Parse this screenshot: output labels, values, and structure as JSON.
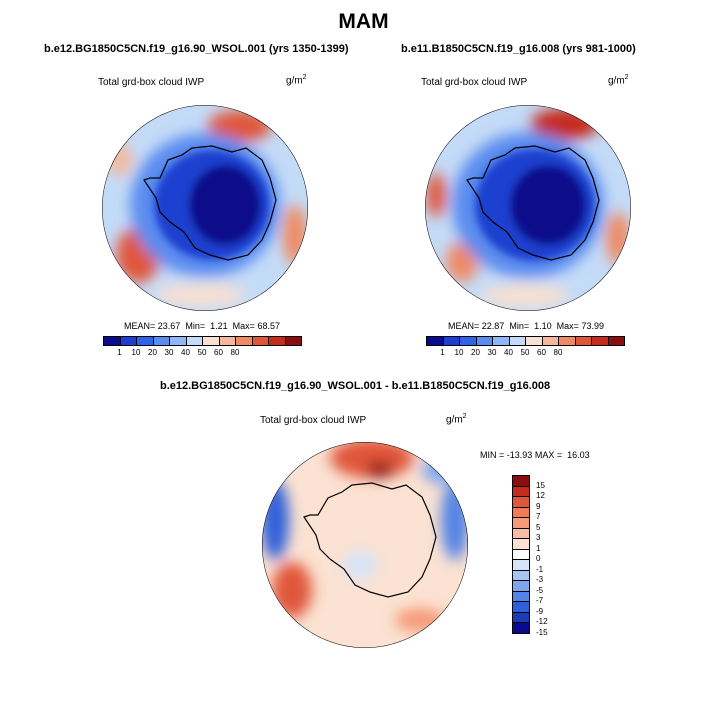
{
  "figure": {
    "title": "MAM"
  },
  "panels": [
    {
      "case_title": "b.e12.BG1850C5CN.f19_g16.90_WSOL.001 (yrs 1350-1399)",
      "variable": "Total grd-box cloud IWP",
      "units_base": "g/m",
      "units_exp": "2",
      "mean_label": "MEAN=",
      "mean": "23.67",
      "min_label": "Min=",
      "min": "1.21",
      "max_label": "Max=",
      "max": "68.57",
      "colorbar": {
        "colors": [
          "#0a0a8c",
          "#1c3fcf",
          "#2f63e6",
          "#5a8cf0",
          "#8fb6f5",
          "#c4dbf7",
          "#f7e0d3",
          "#f5b89c",
          "#ef8a64",
          "#e0563a",
          "#c42b1d",
          "#8c0d0d"
        ],
        "ticks": [
          "1",
          "10",
          "20",
          "30",
          "40",
          "50",
          "60",
          "80"
        ]
      }
    },
    {
      "case_title": "b.e11.B1850C5CN.f19_g16.008 (yrs 981-1000)",
      "variable": "Total grd-box cloud IWP",
      "units_base": "g/m",
      "units_exp": "2",
      "mean_label": "MEAN=",
      "mean": "22.87",
      "min_label": "Min=",
      "min": "1.10",
      "max_label": "Max=",
      "max": "73.99",
      "colorbar": {
        "colors": [
          "#0a0a8c",
          "#1c3fcf",
          "#2f63e6",
          "#5a8cf0",
          "#8fb6f5",
          "#c4dbf7",
          "#f7e0d3",
          "#f5b89c",
          "#ef8a64",
          "#e0563a",
          "#c42b1d",
          "#8c0d0d"
        ],
        "ticks": [
          "1",
          "10",
          "20",
          "30",
          "40",
          "50",
          "60",
          "80"
        ]
      }
    },
    {
      "case_title": "b.e12.BG1850C5CN.f19_g16.90_WSOL.001 - b.e11.B1850C5CN.f19_g16.008",
      "variable": "Total grd-box cloud IWP",
      "units_base": "g/m",
      "units_exp": "2",
      "min_label": "MIN =",
      "min": "-13.93",
      "max_label": "MAX =",
      "max": "16.03",
      "colorbar": {
        "colors": [
          "#8c0d0d",
          "#c42b1d",
          "#e0563a",
          "#ef7a55",
          "#f59a78",
          "#f8bea3",
          "#fbe2d2",
          "#ffffff",
          "#d6e4f8",
          "#a9c6f3",
          "#7ea6ee",
          "#5283e6",
          "#2f5fd9",
          "#1c3bb8",
          "#0a0a8c"
        ],
        "ticks": [
          "15",
          "12",
          "9",
          "7",
          "5",
          "3",
          "1",
          "0",
          "-1",
          "-3",
          "-5",
          "-7",
          "-9",
          "-12",
          "-15"
        ]
      }
    }
  ],
  "map_colors": {
    "high": "#c42b1d",
    "mid_high": "#ef8a64",
    "light_warm": "#f7e0d3",
    "light_cool": "#c4dbf7",
    "mid_cool": "#5a8cf0",
    "low": "#1c3fcf",
    "deep": "#0a0a8c",
    "coast": "#000000"
  }
}
